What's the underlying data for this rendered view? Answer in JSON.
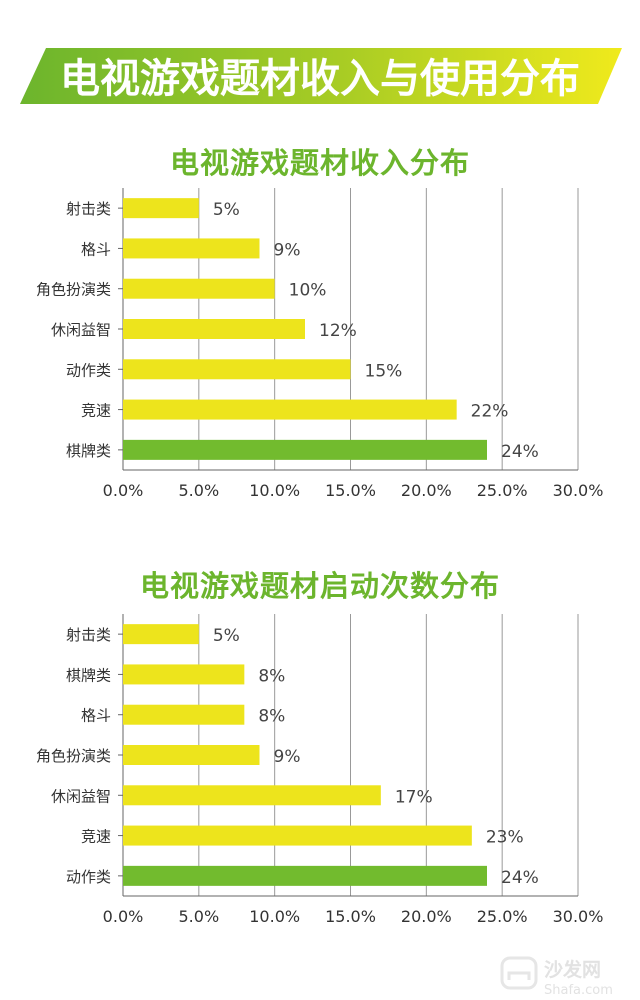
{
  "header": {
    "title": "电视游戏题材收入与使用分布"
  },
  "colors": {
    "bar": "#ede41c",
    "highlight": "#72bb2e",
    "title": "#6cb52d",
    "banner_dark": "#6cb52d",
    "banner_light": "#f0ea1c",
    "grid": "#999999"
  },
  "chart_data": [
    {
      "type": "bar",
      "orientation": "horizontal",
      "title": "电视游戏题材收入分布",
      "categories": [
        "射击类",
        "格斗",
        "角色扮演类",
        "休闲益智",
        "动作类",
        "竞速",
        "棋牌类"
      ],
      "values": [
        5,
        9,
        10,
        12,
        15,
        22,
        24
      ],
      "value_labels": [
        "5%",
        "9%",
        "10%",
        "12%",
        "15%",
        "22%",
        "24%"
      ],
      "highlight_category": "棋牌类",
      "xlim": [
        0,
        30
      ],
      "xticks": [
        "0.0%",
        "5.0%",
        "10.0%",
        "15.0%",
        "20.0%",
        "25.0%",
        "30.0%"
      ],
      "grid": true
    },
    {
      "type": "bar",
      "orientation": "horizontal",
      "title": "电视游戏题材启动次数分布",
      "categories": [
        "射击类",
        "棋牌类",
        "格斗",
        "角色扮演类",
        "休闲益智",
        "竞速",
        "动作类"
      ],
      "values": [
        5,
        8,
        8,
        9,
        17,
        23,
        24
      ],
      "value_labels": [
        "5%",
        "8%",
        "8%",
        "9%",
        "17%",
        "23%",
        "24%"
      ],
      "highlight_category": "动作类",
      "xlim": [
        0,
        30
      ],
      "xticks": [
        "0.0%",
        "5.0%",
        "10.0%",
        "15.0%",
        "20.0%",
        "25.0%",
        "30.0%"
      ],
      "grid": true
    }
  ],
  "watermark": {
    "text_cn": "沙发网",
    "text_en": "Shafa.com",
    "icon": "sofa-icon"
  }
}
